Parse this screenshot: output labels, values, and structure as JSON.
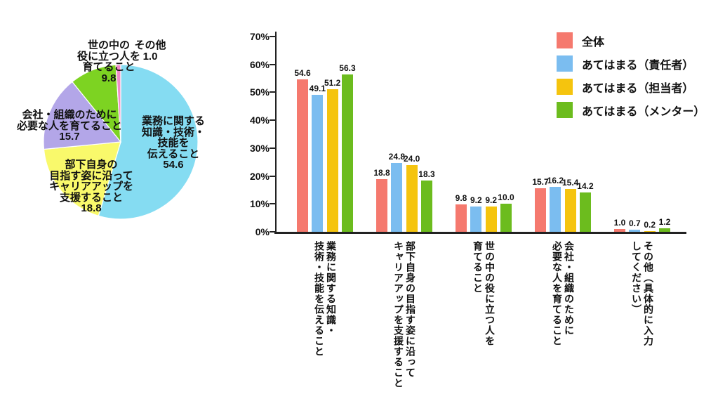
{
  "chart_data": [
    {
      "type": "pie",
      "title": "",
      "start_angle_deg": 0,
      "labels_show_values": true,
      "slices": [
        {
          "label": "業務に関する知識・技術・技能を伝えること",
          "label_lines": [
            "業務に関する",
            "知識・技術・",
            "技能を",
            "伝えること"
          ],
          "value": 54.6,
          "color": "#85DCF2"
        },
        {
          "label": "部下自身の目指す姿に沿ってキャリアアップを支援すること",
          "label_lines": [
            "部下自身の",
            "目指す姿に沿って",
            "キャリアアップを",
            "支援すること"
          ],
          "value": 18.8,
          "color": "#F9F96B"
        },
        {
          "label": "会社・組織のために必要な人を育てること",
          "label_lines": [
            "会社・組織のために",
            "必要な人を育てること"
          ],
          "value": 15.7,
          "color": "#B3A6E8"
        },
        {
          "label": "世の中の役に立つ人を育てること",
          "label_lines": [
            "世の中の",
            "役に立つ人を",
            "育てること"
          ],
          "value": 9.8,
          "color": "#7DD322"
        },
        {
          "label": "その他",
          "label_lines": [
            "その他"
          ],
          "value": 1.0,
          "color": "#F08BC8"
        }
      ]
    },
    {
      "type": "bar",
      "title": "",
      "ylim": [
        0,
        70
      ],
      "ytick_step": 10,
      "ytick_suffix": "%",
      "grid": false,
      "value_labels": true,
      "legend_position": "top-right",
      "categories": [
        {
          "label": "業務に関する知識・技術・技能を伝えること",
          "label_columns": [
            "業務に関する知識・",
            "技術・技能を伝えること"
          ]
        },
        {
          "label": "部下自身の目指す姿に沿ってキャリアアップを支援すること",
          "label_columns": [
            "部下自身の目指す姿に沿って",
            "キャリアアップを支援すること"
          ]
        },
        {
          "label": "世の中の役に立つ人を育てること",
          "label_columns": [
            "世の中の役に立つ人を",
            "育てること"
          ]
        },
        {
          "label": "会社・組織のために必要な人を育てること",
          "label_columns": [
            "会社・組織のために",
            "必要な人を育てること"
          ]
        },
        {
          "label": "その他（具体的に入力してください）",
          "label_columns": [
            "その他（具体的に入力",
            "してください）"
          ]
        }
      ],
      "series": [
        {
          "name": "全体",
          "color": "#F5796E",
          "values": [
            54.6,
            18.8,
            9.8,
            15.7,
            1.0
          ]
        },
        {
          "name": "あてはまる（責任者）",
          "color": "#7BBDF0",
          "values": [
            49.1,
            24.8,
            9.2,
            16.2,
            0.7
          ]
        },
        {
          "name": "あてはまる（担当者）",
          "color": "#F5C40E",
          "values": [
            51.2,
            24.0,
            9.2,
            15.4,
            0.2
          ]
        },
        {
          "name": "あてはまる（メンター）",
          "color": "#6CBC1E",
          "values": [
            56.3,
            18.3,
            10.0,
            14.2,
            1.2
          ]
        }
      ]
    }
  ]
}
